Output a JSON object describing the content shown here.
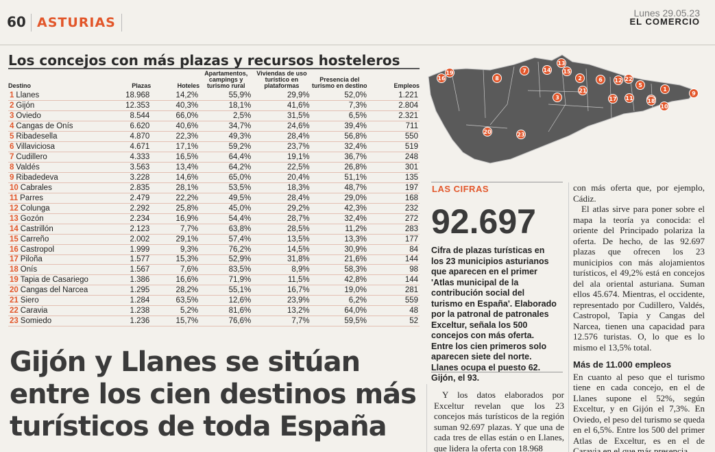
{
  "header": {
    "page_number": "60",
    "section": "ASTURIAS",
    "date": "Lunes 29.05.23",
    "newspaper": "EL COMERCIO"
  },
  "table": {
    "title": "Los concejos con más plazas y recursos hosteleros",
    "columns": {
      "destino": "Destino",
      "plazas": "Plazas",
      "hoteles": "Hoteles",
      "apartamentos": "Apartamentos, campings y turismo rural",
      "viviendas": "Viviendas de uso turístico en plataformas",
      "presencia": "Presencia del turismo en destino",
      "empleos": "Empleos"
    },
    "rows": [
      {
        "rank": "1",
        "name": "Llanes",
        "plazas": "18.968",
        "hoteles": "14,2%",
        "apart": "55,9%",
        "viv": "29,9%",
        "pres": "52,0%",
        "emp": "1.221"
      },
      {
        "rank": "2",
        "name": "Gijón",
        "plazas": "12.353",
        "hoteles": "40,3%",
        "apart": "18,1%",
        "viv": "41,6%",
        "pres": "7,3%",
        "emp": "2.804"
      },
      {
        "rank": "3",
        "name": "Oviedo",
        "plazas": "8.544",
        "hoteles": "66,0%",
        "apart": "2,5%",
        "viv": "31,5%",
        "pres": "6,5%",
        "emp": "2.321"
      },
      {
        "rank": "4",
        "name": "Cangas de Onís",
        "plazas": "6.620",
        "hoteles": "40,6%",
        "apart": "34,7%",
        "viv": "24,6%",
        "pres": "39,4%",
        "emp": "711"
      },
      {
        "rank": "5",
        "name": "Ribadesella",
        "plazas": "4.870",
        "hoteles": "22,3%",
        "apart": "49,3%",
        "viv": "28,4%",
        "pres": "56,8%",
        "emp": "550"
      },
      {
        "rank": "6",
        "name": "Villaviciosa",
        "plazas": "4.671",
        "hoteles": "17,1%",
        "apart": "59,2%",
        "viv": "23,7%",
        "pres": "32,4%",
        "emp": "519"
      },
      {
        "rank": "7",
        "name": "Cudillero",
        "plazas": "4.333",
        "hoteles": "16,5%",
        "apart": "64,4%",
        "viv": "19,1%",
        "pres": "36,7%",
        "emp": "248"
      },
      {
        "rank": "8",
        "name": "Valdés",
        "plazas": "3.563",
        "hoteles": "13,4%",
        "apart": "64,2%",
        "viv": "22,5%",
        "pres": "26,8%",
        "emp": "301"
      },
      {
        "rank": "9",
        "name": "Ribadedeva",
        "plazas": "3.228",
        "hoteles": "14,6%",
        "apart": "65,0%",
        "viv": "20,4%",
        "pres": "51,1%",
        "emp": "135"
      },
      {
        "rank": "10",
        "name": "Cabrales",
        "plazas": "2.835",
        "hoteles": "28,1%",
        "apart": "53,5%",
        "viv": "18,3%",
        "pres": "48,7%",
        "emp": "197"
      },
      {
        "rank": "11",
        "name": "Parres",
        "plazas": "2.479",
        "hoteles": "22,2%",
        "apart": "49,5%",
        "viv": "28,4%",
        "pres": "29,0%",
        "emp": "168"
      },
      {
        "rank": "12",
        "name": "Colunga",
        "plazas": "2.292",
        "hoteles": "25,8%",
        "apart": "45,0%",
        "viv": "29,2%",
        "pres": "42,3%",
        "emp": "232"
      },
      {
        "rank": "13",
        "name": "Gozón",
        "plazas": "2.234",
        "hoteles": "16,9%",
        "apart": "54,4%",
        "viv": "28,7%",
        "pres": "32,4%",
        "emp": "272"
      },
      {
        "rank": "14",
        "name": "Castrillón",
        "plazas": "2.123",
        "hoteles": "7,7%",
        "apart": "63,8%",
        "viv": "28,5%",
        "pres": "11,2%",
        "emp": "283"
      },
      {
        "rank": "15",
        "name": "Carreño",
        "plazas": "2.002",
        "hoteles": "29,1%",
        "apart": "57,4%",
        "viv": "13,5%",
        "pres": "13,3%",
        "emp": "177"
      },
      {
        "rank": "16",
        "name": "Castropol",
        "plazas": "1.999",
        "hoteles": "9,3%",
        "apart": "76,2%",
        "viv": "14,5%",
        "pres": "30,9%",
        "emp": "84"
      },
      {
        "rank": "17",
        "name": "Piloña",
        "plazas": "1.577",
        "hoteles": "15,3%",
        "apart": "52,9%",
        "viv": "31,8%",
        "pres": "21,6%",
        "emp": "144"
      },
      {
        "rank": "18",
        "name": "Onís",
        "plazas": "1.567",
        "hoteles": "7,6%",
        "apart": "83,5%",
        "viv": "8,9%",
        "pres": "58,3%",
        "emp": "98"
      },
      {
        "rank": "19",
        "name": "Tapia de Casariego",
        "plazas": "1.386",
        "hoteles": "16,6%",
        "apart": "71,9%",
        "viv": "11,5%",
        "pres": "42,8%",
        "emp": "144"
      },
      {
        "rank": "20",
        "name": "Cangas del Narcea",
        "plazas": "1.295",
        "hoteles": "28,2%",
        "apart": "55,1%",
        "viv": "16,7%",
        "pres": "19,0%",
        "emp": "281"
      },
      {
        "rank": "21",
        "name": "Siero",
        "plazas": "1.284",
        "hoteles": "63,5%",
        "apart": "12,6%",
        "viv": "23,9%",
        "pres": "6,2%",
        "emp": "559"
      },
      {
        "rank": "22",
        "name": "Caravia",
        "plazas": "1.238",
        "hoteles": "5,2%",
        "apart": "81,6%",
        "viv": "13,2%",
        "pres": "64,0%",
        "emp": "48"
      },
      {
        "rank": "23",
        "name": "Somiedo",
        "plazas": "1.236",
        "hoteles": "15,7%",
        "apart": "76,6%",
        "viv": "7,7%",
        "pres": "59,5%",
        "emp": "52"
      }
    ]
  },
  "map": {
    "land_color": "#5a5a5a",
    "outline_color": "#c8c8c8",
    "pin_color": "#e2562a",
    "pins": [
      "1",
      "2",
      "3",
      "4",
      "5",
      "6",
      "7",
      "8",
      "9",
      "10",
      "11",
      "12",
      "13",
      "14",
      "15",
      "16",
      "17",
      "18",
      "19",
      "20",
      "21",
      "22",
      "23"
    ]
  },
  "cifras": {
    "label": "LAS CIFRAS",
    "number": "92.697",
    "text": "Cifra de plazas turísticas en los 23 municipios asturianos que aparecen en el primer 'Atlas municipal de la contribución social del turismo en España'. Elaborado por la patronal de patronales Exceltur, señala los 500 concejos con más oferta. Entre los cien primeros solo aparecen siete del norte. Llanes ocupa el puesto 62. Gijón, el 93."
  },
  "headline": "Gijón y Llanes se sitúan entre los cien destinos más turísticos de toda España",
  "article": {
    "col1": "Y los datos elaborados por Exceltur revelan que los 23 concejos más turísticos de la región suman 92.697 plazas. Y que una de cada tres de ellas están o en Llanes, que lidera la oferta con 18.968",
    "col2_p1": "con más oferta que, por ejemplo, Cádiz.",
    "col2_p2": "El atlas sirve para poner sobre el mapa la teoría ya conocida: el oriente del Principado polariza la oferta. De hecho, de las 92.697 plazas que ofrecen los 23 municipios con más alojamientos turísticos, el 49,2% está en concejos del ala oriental asturiana. Suman ellos 45.674. Mientras, el occidente, representado por Cudillero, Valdés, Castropol, Tapia y Cangas del Narcea, tienen una capacidad para 12.576 turistas. O, lo que es lo mismo el 13,5% total.",
    "subhead": "Más de 11.000 empleos",
    "col2_p3": "En cuanto al peso que el turismo tiene en cada concejo, en el de Llanes supone el 52%, según Exceltur, y en Gijón el 7,3%. En Oviedo, el peso del turismo se queda en el 6,5%. Entre los 500 del primer Atlas de Exceltur, es en el de Caravia en el que más presencia"
  }
}
